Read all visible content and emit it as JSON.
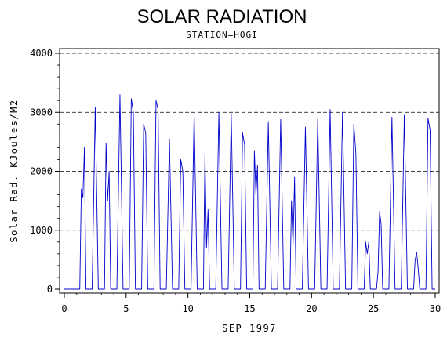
{
  "chart_data": {
    "type": "line",
    "title": "SOLAR RADIATION",
    "subtitle": "STATION=HOGI",
    "xlabel": "SEP 1997",
    "ylabel": "Solar Rad. KJoules/M2",
    "xlim": [
      0,
      30
    ],
    "ylim": [
      0,
      4000
    ],
    "x_ticks": [
      0,
      5,
      10,
      15,
      20,
      25,
      30
    ],
    "y_ticks": [
      0,
      1000,
      2000,
      3000,
      4000
    ],
    "grid": "horizontal dashed",
    "line_color": "#0000cc",
    "daily_peaks": [
      {
        "day": 1,
        "values": [
          1700,
          1550,
          2400
        ]
      },
      {
        "day": 2,
        "values": [
          3080
        ]
      },
      {
        "day": 3,
        "values": [
          2480,
          1500,
          2000
        ]
      },
      {
        "day": 4,
        "values": [
          3300
        ]
      },
      {
        "day": 5,
        "values": [
          3230,
          3000
        ]
      },
      {
        "day": 6,
        "values": [
          2800,
          2650
        ]
      },
      {
        "day": 7,
        "values": [
          3200,
          3050
        ]
      },
      {
        "day": 8,
        "values": [
          2550
        ]
      },
      {
        "day": 9,
        "values": [
          2200,
          2000
        ]
      },
      {
        "day": 10,
        "values": [
          3000
        ]
      },
      {
        "day": 11,
        "values": [
          2280,
          700,
          1350
        ]
      },
      {
        "day": 12,
        "values": [
          3000
        ]
      },
      {
        "day": 13,
        "values": [
          2980
        ]
      },
      {
        "day": 14,
        "values": [
          2650,
          2450
        ]
      },
      {
        "day": 15,
        "values": [
          2340,
          1600,
          2100
        ]
      },
      {
        "day": 16,
        "values": [
          2830
        ]
      },
      {
        "day": 17,
        "values": [
          2880
        ]
      },
      {
        "day": 18,
        "values": [
          1500,
          750,
          1900
        ]
      },
      {
        "day": 19,
        "values": [
          2750
        ]
      },
      {
        "day": 20,
        "values": [
          2900
        ]
      },
      {
        "day": 21,
        "values": [
          3050
        ]
      },
      {
        "day": 22,
        "values": [
          3000
        ]
      },
      {
        "day": 23,
        "values": [
          2800,
          2300
        ]
      },
      {
        "day": 24,
        "values": [
          800,
          600,
          800
        ]
      },
      {
        "day": 25,
        "values": [
          300,
          1320,
          1100
        ]
      },
      {
        "day": 26,
        "values": [
          2920
        ]
      },
      {
        "day": 27,
        "values": [
          2950
        ]
      },
      {
        "day": 28,
        "values": [
          500,
          620,
          350
        ]
      },
      {
        "day": 29,
        "values": [
          2900,
          2700
        ]
      }
    ]
  }
}
